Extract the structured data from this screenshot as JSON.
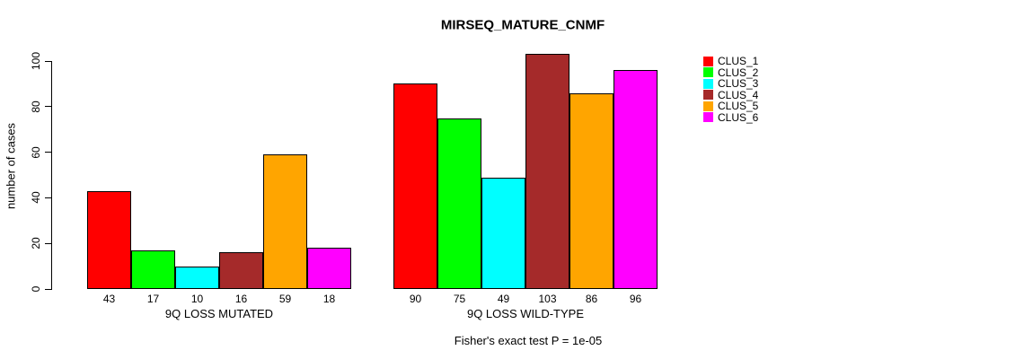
{
  "chart_data": {
    "type": "bar",
    "title": "MIRSEQ_MATURE_CNMF",
    "ylabel": "number of cases",
    "ylim": [
      0,
      100
    ],
    "yticks": [
      0,
      20,
      40,
      60,
      80,
      100
    ],
    "grid": false,
    "legend_position": "right",
    "series_labels": [
      "CLUS_1",
      "CLUS_2",
      "CLUS_3",
      "CLUS_4",
      "CLUS_5",
      "CLUS_6"
    ],
    "colors": [
      "#ff0000",
      "#00ff00",
      "#00ffff",
      "#a52a2a",
      "#ffa500",
      "#ff00ff"
    ],
    "groups": [
      {
        "label": "9Q LOSS MUTATED",
        "values": [
          43,
          17,
          10,
          16,
          59,
          18
        ]
      },
      {
        "label": "9Q LOSS WILD-TYPE",
        "values": [
          90,
          75,
          49,
          103,
          86,
          96
        ]
      }
    ],
    "bar_value_labels_shown": true,
    "footnote": "Fisher's exact test P = 1e-05"
  }
}
